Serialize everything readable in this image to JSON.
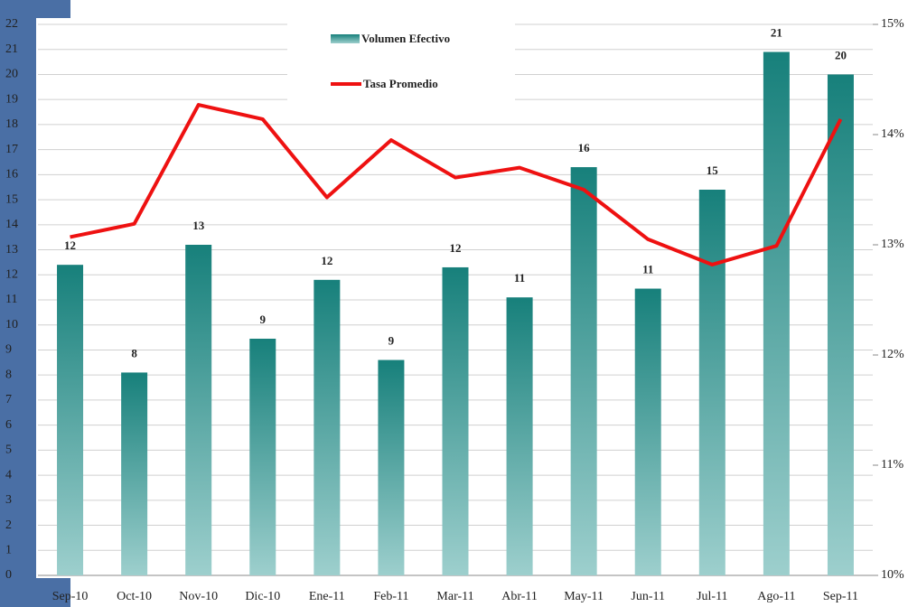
{
  "chart_data": {
    "type": "bar-line",
    "categories": [
      "Sep-10",
      "Oct-10",
      "Nov-10",
      "Dic-10",
      "Ene-11",
      "Feb-11",
      "Mar-11",
      "Abr-11",
      "May-11",
      "Jun-11",
      "Jul-11",
      "Ago-11",
      "Sep-11"
    ],
    "series": [
      {
        "name": "Volumen Efectivo",
        "type": "bar",
        "color": "#17807b",
        "color2": "#9dcfcd",
        "values": [
          12.4,
          8.1,
          13.2,
          9.45,
          11.8,
          8.6,
          12.3,
          11.1,
          16.3,
          11.45,
          15.4,
          20.9,
          20.0
        ],
        "value_labels": [
          "12",
          "8",
          "13",
          "9",
          "12",
          "9",
          "12",
          "11",
          "16",
          "11",
          "15",
          "21",
          "20"
        ]
      },
      {
        "name": "Tasa Promedio",
        "type": "line",
        "axis": "y2",
        "color": "#ee1111",
        "values": [
          13.07,
          13.19,
          14.27,
          14.14,
          13.43,
          13.95,
          13.61,
          13.7,
          13.5,
          13.05,
          12.82,
          12.99,
          14.14
        ]
      }
    ],
    "ylim": [
      0,
      22
    ],
    "yticks": [
      0,
      1,
      2,
      3,
      4,
      5,
      6,
      7,
      8,
      9,
      10,
      11,
      12,
      13,
      14,
      15,
      16,
      17,
      18,
      19,
      20,
      21,
      22
    ],
    "y2lim": [
      10,
      15
    ],
    "y2ticks": [
      {
        "value": 10,
        "label": "10%"
      },
      {
        "value": 11,
        "label": "11%"
      },
      {
        "value": 12,
        "label": "12%"
      },
      {
        "value": 13,
        "label": "13%"
      },
      {
        "value": 14,
        "label": "14%"
      },
      {
        "value": 15,
        "label": "15%"
      }
    ],
    "grid": true
  }
}
